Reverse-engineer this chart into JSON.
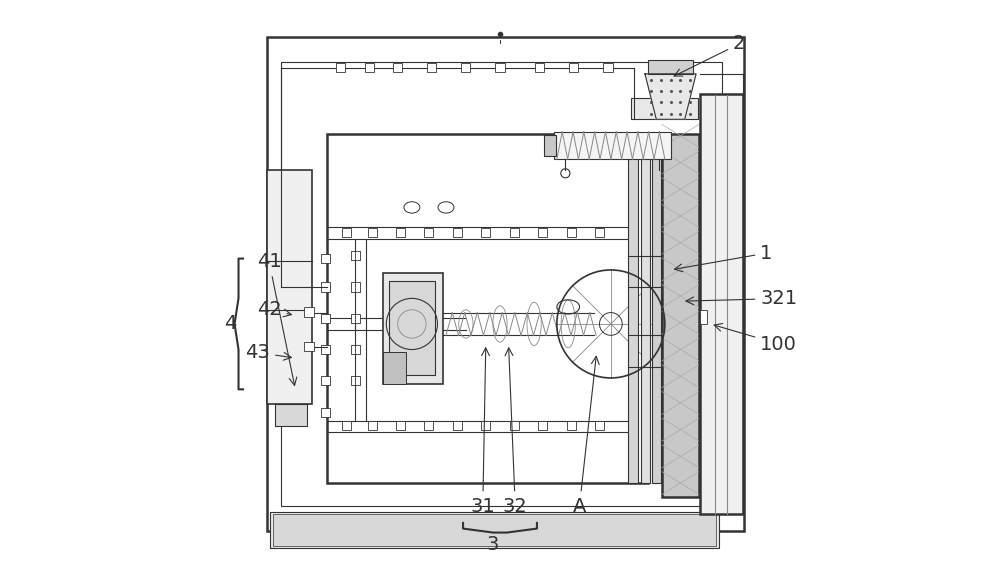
{
  "bg_color": "#ffffff",
  "line_color": "#333333",
  "gray_color": "#888888",
  "light_gray": "#cccccc",
  "dark_gray": "#555555",
  "label_fontsize": 14,
  "figure_width": 10.0,
  "figure_height": 5.74
}
